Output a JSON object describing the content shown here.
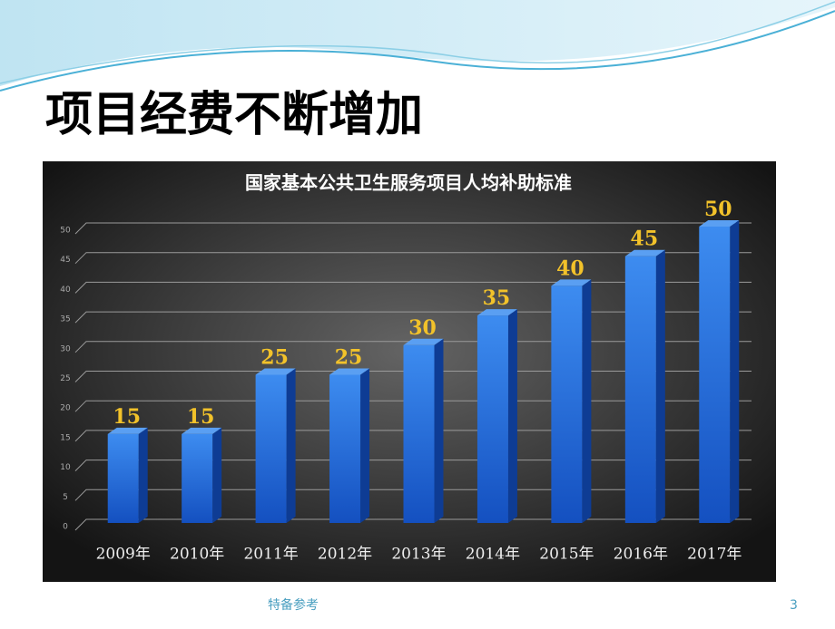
{
  "slide": {
    "title": "项目经费不断增加",
    "footer": "特备参考",
    "page_number": 3
  },
  "chart_data": {
    "type": "bar",
    "title": "国家基本公共卫生服务项目人均补助标准",
    "categories": [
      "2009年",
      "2010年",
      "2011年",
      "2012年",
      "2013年",
      "2014年",
      "2015年",
      "2016年",
      "2017年"
    ],
    "values": [
      15,
      15,
      25,
      25,
      30,
      35,
      40,
      45,
      50
    ],
    "color": "#2f7de0",
    "ylim": [
      0,
      50
    ],
    "yticks": [
      0,
      5,
      10,
      15,
      20,
      25,
      30,
      35,
      40,
      45,
      50
    ],
    "grid": true
  }
}
